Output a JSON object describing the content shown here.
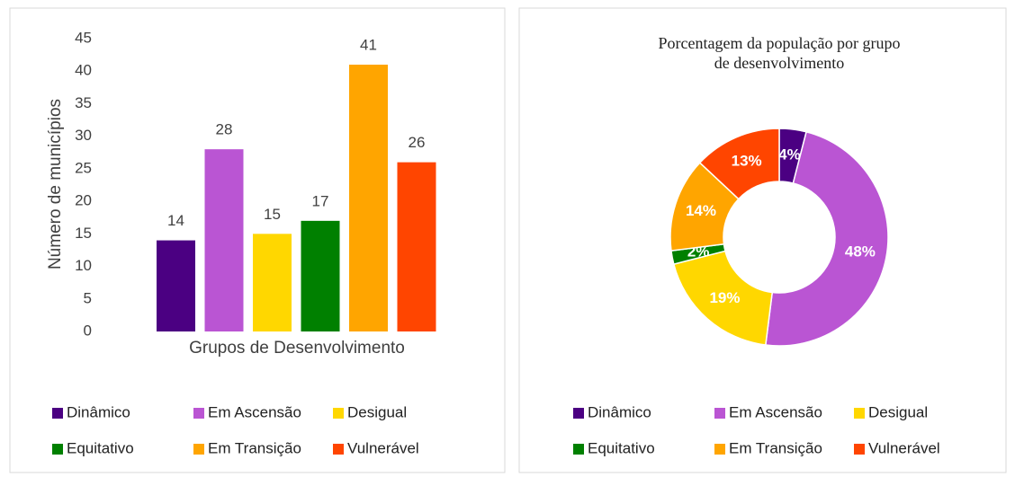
{
  "chart_data": [
    {
      "type": "bar",
      "y_label": "Número de municípios",
      "x_label": "Grupos de Desenvolvimento",
      "series": [
        {
          "name": "Dinâmico",
          "color": "#4b0082",
          "values": [
            14
          ]
        },
        {
          "name": "Em Ascensão",
          "color": "#ba55d3",
          "values": [
            28
          ]
        },
        {
          "name": "Desigual",
          "color": "#ffd700",
          "values": [
            15
          ]
        },
        {
          "name": "Equitativo",
          "color": "#008000",
          "values": [
            17
          ]
        },
        {
          "name": "Em Transição",
          "color": "#ffa500",
          "values": [
            41
          ]
        },
        {
          "name": "Vulnerável",
          "color": "#ff4500",
          "values": [
            26
          ]
        }
      ],
      "ylim": [
        0,
        45
      ],
      "yticks": [
        0,
        5,
        10,
        15,
        20,
        25,
        30,
        35,
        40,
        45
      ],
      "legend": "bottom"
    },
    {
      "type": "donut",
      "title": "Porcentagem da população por grupo de desenvolvimento",
      "categories": [
        "Dinâmico",
        "Em Ascensão",
        "Desigual",
        "Equitativo",
        "Em Transição",
        "Vulnerável"
      ],
      "colors": [
        "#4b0082",
        "#ba55d3",
        "#ffd700",
        "#008000",
        "#ffa500",
        "#ff4500"
      ],
      "values": [
        4,
        48,
        19,
        2,
        14,
        13
      ],
      "value_labels": [
        "4%",
        "48%",
        "19%",
        "2%",
        "14%",
        "13%"
      ],
      "legend": "bottom"
    }
  ]
}
